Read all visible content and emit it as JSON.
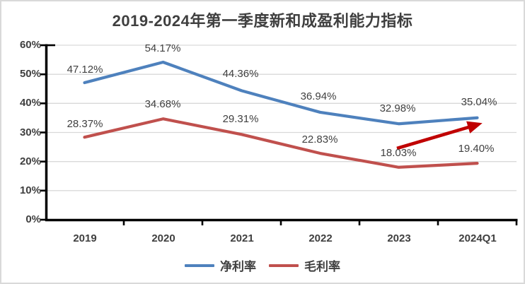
{
  "title": "2019-2024年第一季度新和成盈利能力指标",
  "colors": {
    "net_margin_line": "#4E81BD",
    "gross_margin_line": "#C0504D",
    "annotation_arrow": "#C00000",
    "gridline": "#D9D9D9",
    "axis": "#000000",
    "text": "#3F3F3F"
  },
  "chart_data": {
    "type": "line",
    "title": "2019-2024年第一季度新和成盈利能力指标",
    "categories": [
      "2019",
      "2020",
      "2021",
      "2022",
      "2023",
      "2024Q1"
    ],
    "series": [
      {
        "name": "净利率",
        "color": "#4E81BD",
        "values": [
          47.12,
          54.17,
          44.36,
          36.94,
          32.98,
          35.04
        ],
        "labels": [
          "47.12%",
          "54.17%",
          "44.36%",
          "36.94%",
          "32.98%",
          "35.04%"
        ]
      },
      {
        "name": "毛利率",
        "color": "#C0504D",
        "values": [
          28.37,
          34.68,
          29.31,
          22.83,
          18.03,
          19.4
        ],
        "labels": [
          "28.37%",
          "34.68%",
          "29.31%",
          "22.83%",
          "18.03%",
          "19.40%"
        ]
      }
    ],
    "xlabel": "",
    "ylabel": "",
    "ylim": [
      0,
      60
    ],
    "y_ticks": [
      "0%",
      "10%",
      "20%",
      "30%",
      "40%",
      "50%",
      "60%"
    ],
    "grid": true,
    "legend_position": "bottom",
    "annotation": {
      "type": "arrow",
      "color": "#C00000",
      "description": "upward trend arrow pointing to 2024Q1 net margin"
    }
  }
}
